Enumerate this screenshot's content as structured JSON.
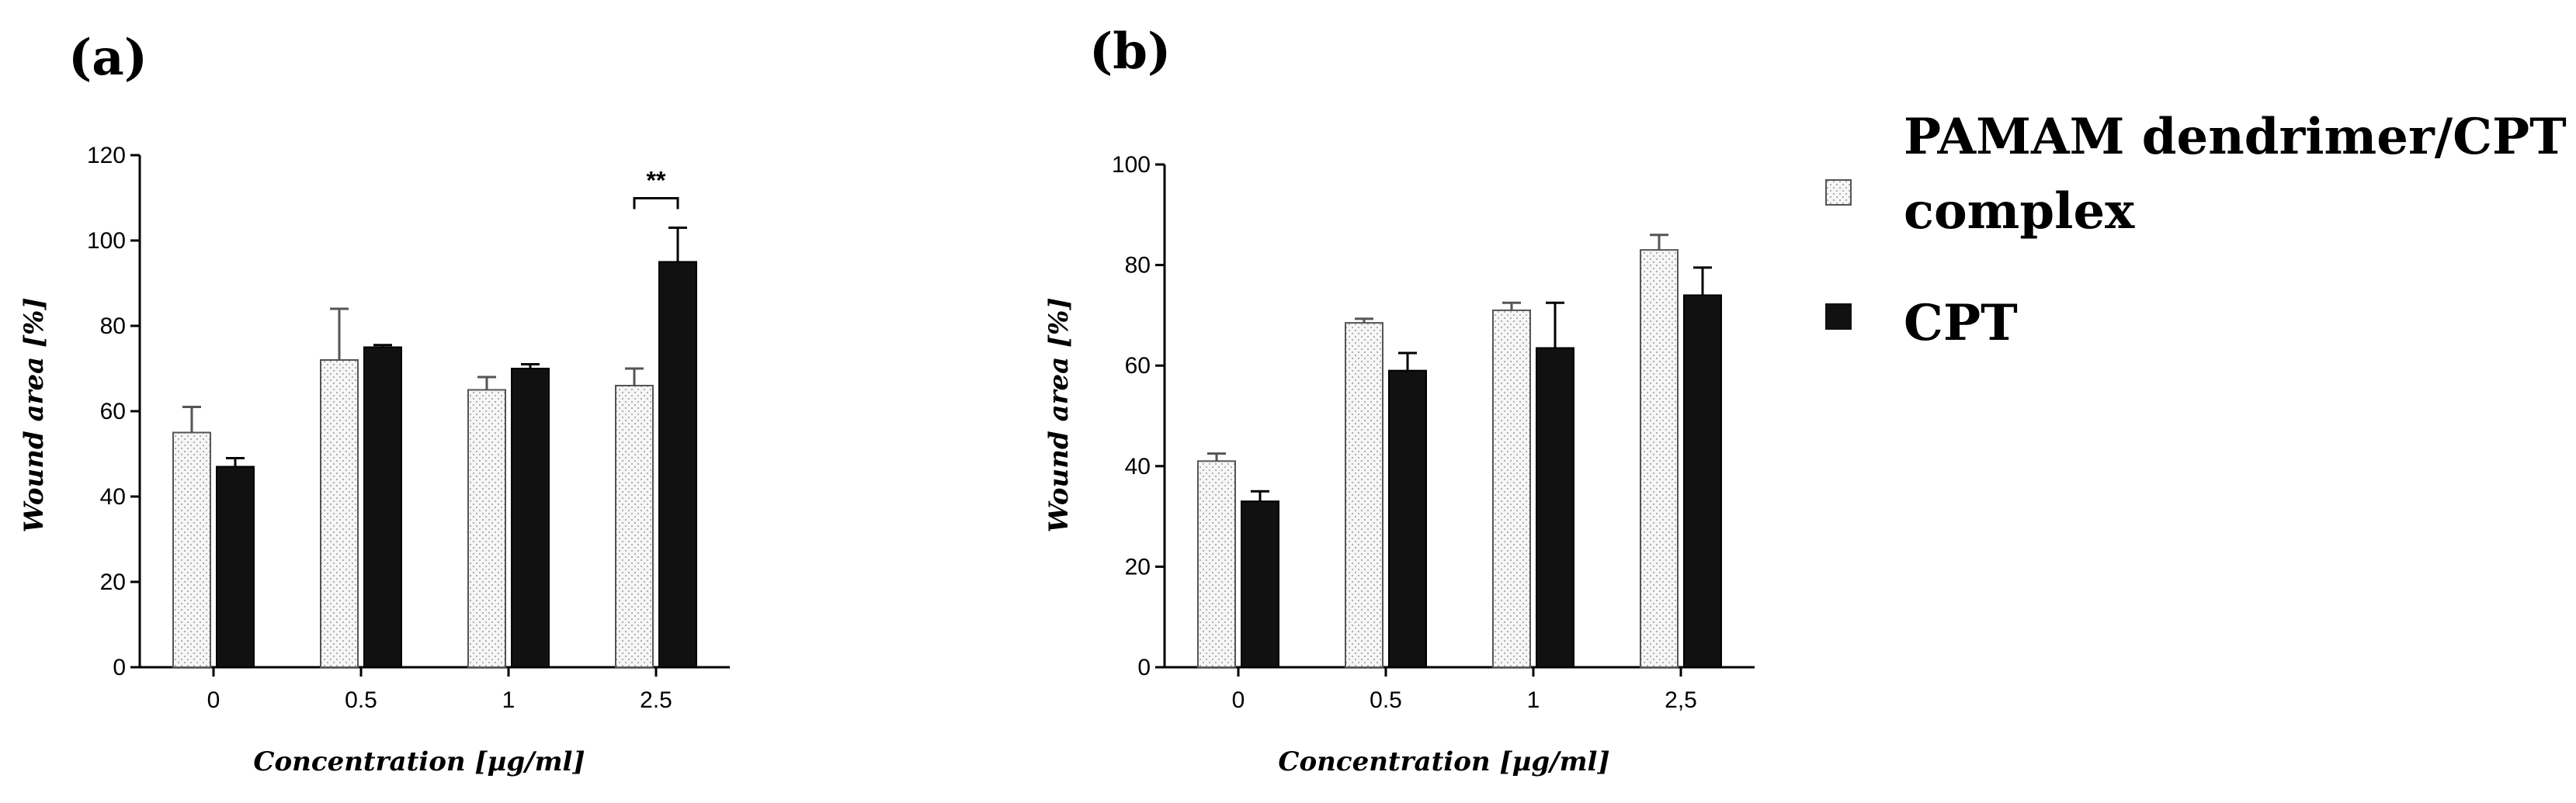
{
  "chart_data": [
    {
      "panel": "(a)",
      "type": "bar",
      "categories": [
        "0",
        "0.5",
        "1",
        "2.5"
      ],
      "series": [
        {
          "name": "PAMAM dendrimer/CPT complex",
          "values": [
            55,
            72,
            65,
            66
          ],
          "errors": [
            6,
            12,
            3,
            4
          ]
        },
        {
          "name": "CPT",
          "values": [
            47,
            75,
            70,
            95
          ],
          "errors": [
            2,
            0.5,
            1,
            8
          ]
        }
      ],
      "xlabel": "Concentration [µg/ml]",
      "ylabel": "Wound area [%]",
      "ylim": [
        0,
        120
      ],
      "yticks": [
        "0",
        "20",
        "40",
        "60",
        "80",
        "100",
        "120"
      ],
      "significance": {
        "category": "2.5",
        "label": "**"
      }
    },
    {
      "panel": "(b)",
      "type": "bar",
      "categories": [
        "0",
        "0.5",
        "1",
        "2,5"
      ],
      "series": [
        {
          "name": "PAMAM dendrimer/CPT complex",
          "values": [
            41,
            68.5,
            71,
            83
          ],
          "errors": [
            1.5,
            0.8,
            1.5,
            3
          ]
        },
        {
          "name": "CPT",
          "values": [
            33,
            59,
            63.5,
            74
          ],
          "errors": [
            2,
            3.5,
            9,
            5.5
          ]
        }
      ],
      "xlabel": "Concentration [µg/ml]",
      "ylabel": "Wound area [%]",
      "ylim": [
        0,
        100
      ],
      "yticks": [
        "0",
        "20",
        "40",
        "60",
        "80",
        "100"
      ]
    }
  ],
  "legend": {
    "items": [
      {
        "line1": "PAMAM dendrimer/CPT",
        "line2": "complex",
        "fill": "#f2f2f2",
        "pattern": "dotted"
      },
      {
        "line1": "CPT",
        "fill": "#111111",
        "pattern": "solid"
      }
    ]
  },
  "colors": {
    "complex": "#f4f4f4",
    "cpt": "#111111",
    "axis": "#000000"
  }
}
